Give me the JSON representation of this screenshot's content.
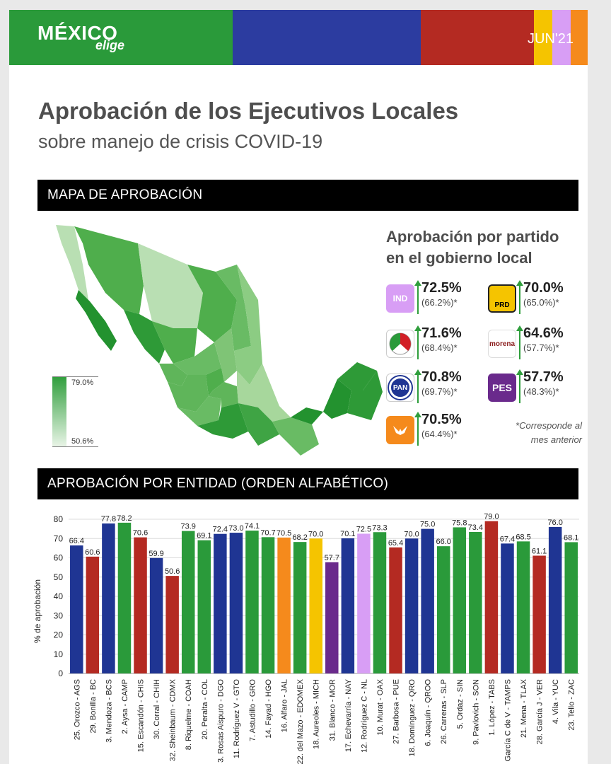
{
  "header": {
    "logo_main": "MÉXICO",
    "logo_sub": "elige",
    "date": "JUN'21",
    "colors": [
      "#2a9a3a",
      "#2c3ca0",
      "#b42a22",
      "#f5c400",
      "#d89ef5",
      "#f58a1c",
      "#b42a22"
    ]
  },
  "title": "Aprobación de los Ejecutivos Locales",
  "subtitle": "sobre manejo de crisis COVID-19",
  "section_map": "MAPA DE APROBACIÓN",
  "section_chart": "APROBACIÓN POR ENTIDAD (ORDEN ALFABÉTICO)",
  "map_legend": {
    "max": "79.0%",
    "min": "50.6%"
  },
  "party_panel": {
    "title_line1": "Aprobación por partido",
    "title_line2": "en el gobierno local",
    "footnote_line1": "*Corresponde al",
    "footnote_line2": "mes anterior",
    "parties": [
      {
        "logo": "IND",
        "value": "72.5%",
        "prev": "(66.2%)*",
        "color": "#d89ef5"
      },
      {
        "logo": "PRD",
        "value": "70.0%",
        "prev": "(65.0%)*",
        "color": "#f5c400"
      },
      {
        "logo": "PRI",
        "value": "71.6%",
        "prev": "(68.4%)*",
        "color": "#ffffff"
      },
      {
        "logo": "morena",
        "value": "64.6%",
        "prev": "(57.7%)*",
        "color": "#ffffff"
      },
      {
        "logo": "PAN",
        "value": "70.8%",
        "prev": "(69.7%)*",
        "color": "#ffffff"
      },
      {
        "logo": "PES",
        "value": "57.7%",
        "prev": "(48.3%)*",
        "color": "#6a2a8c"
      },
      {
        "logo": "MC",
        "value": "70.5%",
        "prev": "(64.4%)*",
        "color": "#f58a1c"
      }
    ]
  },
  "chart_data": {
    "type": "bar",
    "ylabel": "% de aprobación",
    "ylim": [
      0,
      80
    ],
    "yticks": [
      0,
      10,
      20,
      30,
      40,
      50,
      60,
      70,
      80
    ],
    "grid": true,
    "categories": [
      "25. Orozco - AGS",
      "29. Bonilla - BC",
      "3. Mendoza - BCS",
      "2. Aysa - CAMP",
      "15. Escandón - CHIS",
      "30. Corral - CHIH",
      "32. Sheinbaum - CDMX",
      "8. Riquelme - COAH",
      "20. Peralta - COL",
      "3. Rosas Aispuro - DGO",
      "11. Rodríguez V - GTO",
      "7. Astudillo - GRO",
      "14. Fayad - HGO",
      "16. Alfaro - JAL",
      "22. del Mazo - EDOMEX",
      "18. Aureoles - MICH",
      "31. Blanco - MOR",
      "17. Echevarría - NAY",
      "12. Rodríguez C - NL",
      "10. Murat - OAX",
      "27. Barbosa - PUE",
      "18. Domínguez - QRO",
      "6. Joaquín - QROO",
      "26. Carreras - SLP",
      "5. Ordaz - SIN",
      "9. Pavlovich - SON",
      "1. López - TABS",
      "García C de V - TAMPS",
      "21. Mena - TLAX",
      "28. García J - VER",
      "4. Vila - YUC",
      "23. Tello - ZAC"
    ],
    "values": [
      66.4,
      60.6,
      77.8,
      78.2,
      70.6,
      59.9,
      50.6,
      73.9,
      69.1,
      72.4,
      73.0,
      74.1,
      70.7,
      70.5,
      68.2,
      70.0,
      57.7,
      70.1,
      72.5,
      73.3,
      65.4,
      70.0,
      75.0,
      66.0,
      75.8,
      73.4,
      79.0,
      67.4,
      68.5,
      61.1,
      76.0,
      68.1
    ],
    "value_labels": [
      "66.4",
      "60.6",
      "77.8",
      "78.2",
      "70.6",
      "59.9",
      "50.6",
      "73.9",
      "69.1",
      "72.4",
      "73.0",
      "74.1",
      "70.7",
      "70.5",
      "68.2",
      "70.0",
      "57.7",
      "70.1",
      "72.5",
      "73.3",
      "65.4",
      "70.0",
      "75.0",
      "66.0",
      "75.8",
      "73.4",
      "79.0",
      "67.4",
      "68.5",
      "61.1",
      "76.0",
      "68.1"
    ],
    "colors": [
      "#1f3593",
      "#b42a22",
      "#1f3593",
      "#2a9a3a",
      "#b42a22",
      "#1f3593",
      "#b42a22",
      "#2a9a3a",
      "#2a9a3a",
      "#1f3593",
      "#1f3593",
      "#2a9a3a",
      "#2a9a3a",
      "#f58a1c",
      "#2a9a3a",
      "#f5c400",
      "#6a2a8c",
      "#1f3593",
      "#d89ef5",
      "#2a9a3a",
      "#b42a22",
      "#1f3593",
      "#1f3593",
      "#2a9a3a",
      "#2a9a3a",
      "#2a9a3a",
      "#b42a22",
      "#1f3593",
      "#2a9a3a",
      "#b42a22",
      "#1f3593",
      "#2a9a3a"
    ]
  }
}
